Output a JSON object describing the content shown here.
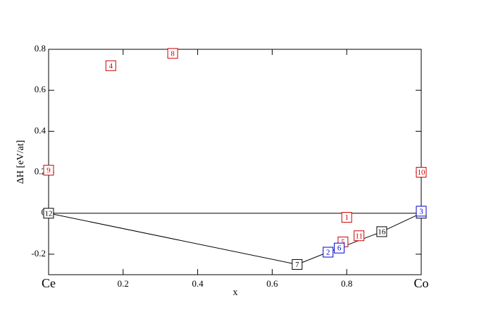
{
  "chart_data": {
    "type": "scatter",
    "x_label": "x",
    "y_label": "ΔH [eV/at]",
    "xlim": [
      0,
      1
    ],
    "ylim": [
      -0.3,
      0.8
    ],
    "xticks": [
      {
        "value": 0,
        "label": "Ce"
      },
      0.2,
      0.4,
      0.6,
      0.8,
      {
        "value": 1,
        "label": "Co"
      }
    ],
    "yticks": [
      -0.2,
      0,
      0.2,
      0.4,
      0.6,
      0.8
    ],
    "reference_line": 0,
    "points": {
      "labels": [
        "4",
        "8",
        "9",
        "10",
        "12",
        "1",
        "5",
        "11",
        "2",
        "6",
        "7",
        "16",
        "14",
        "3"
      ],
      "x": [
        0.167,
        0.333,
        0,
        1,
        0,
        0.8,
        0.79,
        0.833,
        0.75,
        0.78,
        0.667,
        0.894,
        1,
        1
      ],
      "y": [
        0.72,
        0.78,
        0.21,
        0.2,
        0,
        -0.02,
        -0.14,
        -0.11,
        -0.19,
        -0.17,
        -0.25,
        -0.09,
        0,
        0.01
      ],
      "colors": [
        "#cc0000",
        "#cc0000",
        "#cc0000",
        "#cc0000",
        "#000000",
        "#cc0000",
        "#cc0000",
        "#cc0000",
        "#0000cc",
        "#0000cc",
        "#000000",
        "#000000",
        "#000000",
        "#0000cc"
      ]
    },
    "hull": {
      "x": [
        0,
        0.667,
        0.75,
        0.78,
        0.894,
        1
      ],
      "y": [
        0,
        -0.25,
        -0.19,
        -0.17,
        -0.09,
        0
      ]
    }
  }
}
